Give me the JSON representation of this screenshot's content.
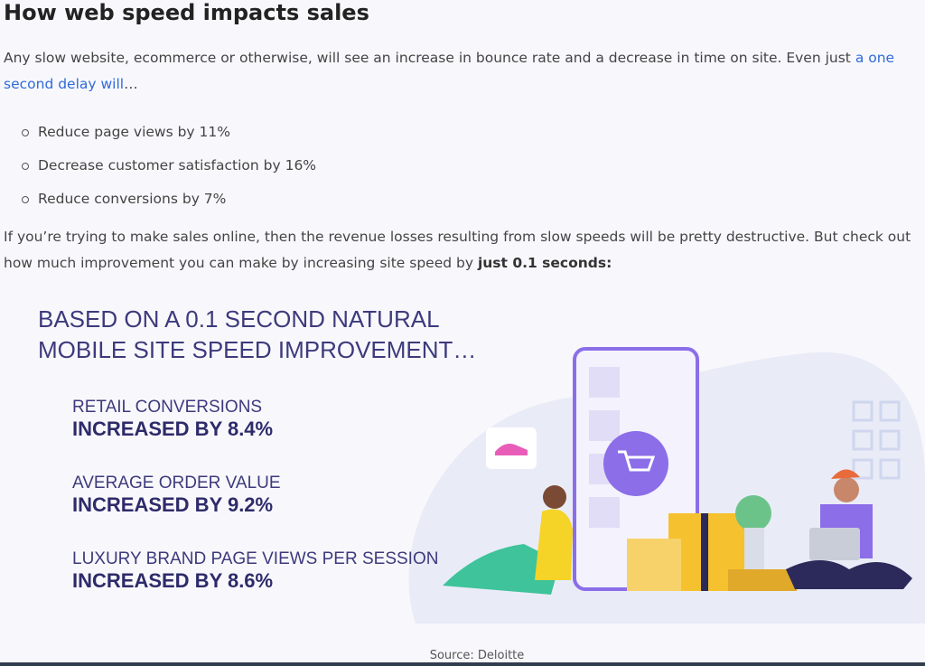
{
  "article": {
    "heading": "How web speed impacts sales",
    "intro": {
      "text": "Any slow website, ecommerce or otherwise, will see an increase in bounce rate and a decrease in time on site. Even just ",
      "link": "a one second delay will",
      "after": "…"
    },
    "bullets": [
      "Reduce page views by 11%",
      "Decrease customer satisfaction by 16%",
      "Reduce conversions by 7%"
    ],
    "followup": {
      "text": "If you’re trying to make sales online, then the revenue losses resulting from slow speeds will be pretty destructive. But check out how much improvement you can make by increasing site speed by ",
      "bold": "just 0.1 seconds:"
    }
  },
  "infographic": {
    "title": [
      "BASED ON A 0.1 SECOND NATURAL",
      "MOBILE SITE SPEED IMPROVEMENT…"
    ],
    "stats": [
      {
        "label": "RETAIL CONVERSIONS",
        "value": "INCREASED BY 8.4%"
      },
      {
        "label": "AVERAGE ORDER VALUE",
        "value": "INCREASED BY 9.2%"
      },
      {
        "label": "LUXURY BRAND PAGE VIEWS PER SESSION",
        "value": "INCREASED BY 8.6%"
      }
    ],
    "source": "Source: Deloitte"
  }
}
